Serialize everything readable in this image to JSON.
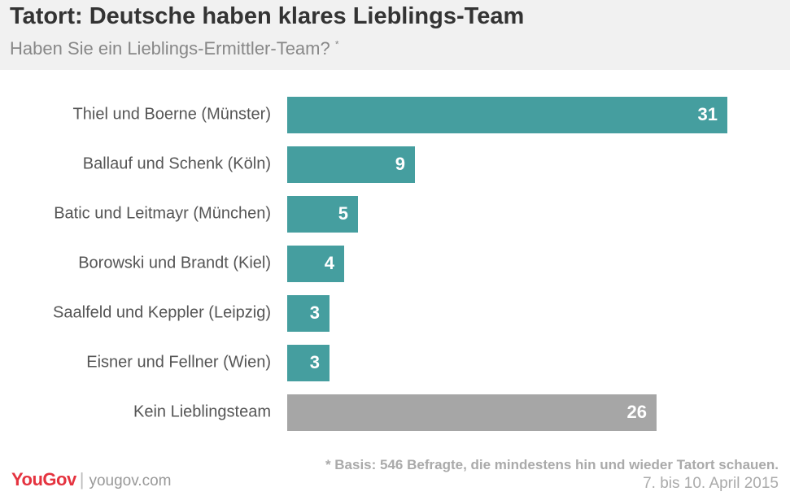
{
  "header": {
    "title": "Tatort: Deutsche haben klares Lieblings-Team",
    "subtitle": "Haben Sie ein Lieblings-Ermittler-Team?",
    "subtitle_mark": "*"
  },
  "chart_data": {
    "type": "bar",
    "orientation": "horizontal",
    "categories": [
      "Thiel und Boerne (Münster)",
      "Ballauf und Schenk (Köln)",
      "Batic und Leitmayr (München)",
      "Borowski und Brandt (Kiel)",
      "Saalfeld und Keppler (Leipzig)",
      "Eisner und Fellner (Wien)",
      "Kein Lieblingsteam"
    ],
    "values": [
      31,
      9,
      5,
      4,
      3,
      3,
      26
    ],
    "colors": [
      "#459e9f",
      "#459e9f",
      "#459e9f",
      "#459e9f",
      "#459e9f",
      "#459e9f",
      "#a6a6a6"
    ],
    "xlim": [
      0,
      31
    ],
    "grid": false,
    "data_labels": true
  },
  "footer": {
    "footnote": "* Basis: 546 Befragte, die mindestens hin und wieder Tatort schauen.",
    "date": "7. bis 10. April 2015",
    "logo_text": "YouGov",
    "separator": "|",
    "site": "yougov.com"
  }
}
